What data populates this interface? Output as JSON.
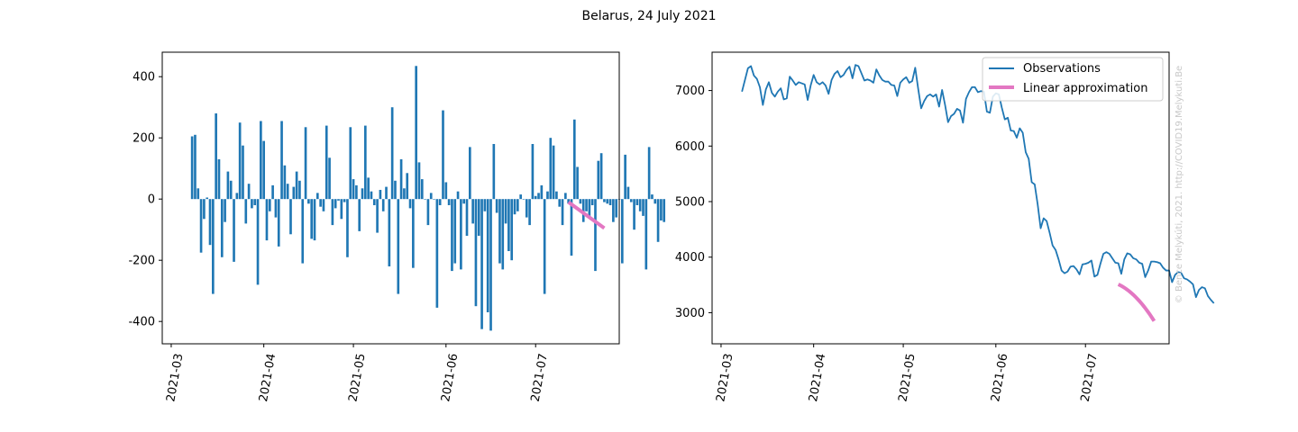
{
  "figure": {
    "title": "Belarus, 24 July 2021",
    "watermark": "© Bence Melykúti, 2021. http://COVID19.Melykuti.Be"
  },
  "colors": {
    "bar": "#1f77b4",
    "observations": "#1f77b4",
    "approximation": "#e377c2"
  },
  "chart_data": [
    {
      "type": "bar",
      "title": "",
      "xlabel": "",
      "ylabel": "",
      "x_start": "2021-03-08",
      "x_tick_labels": [
        "2021-03",
        "2021-04",
        "2021-05",
        "2021-06",
        "2021-07"
      ],
      "y_ticks": [
        -400,
        -200,
        0,
        200,
        400
      ],
      "ylim": [
        -473,
        480
      ],
      "xlim": [
        "2021-02-26",
        "2021-07-29"
      ],
      "values": [
        205,
        210,
        35,
        -175,
        -65,
        5,
        -150,
        -310,
        280,
        130,
        -190,
        -75,
        90,
        60,
        -205,
        20,
        250,
        175,
        -80,
        50,
        -30,
        -20,
        -280,
        255,
        190,
        -135,
        -40,
        45,
        -60,
        -155,
        255,
        110,
        50,
        -115,
        40,
        90,
        60,
        -210,
        235,
        -15,
        -130,
        -135,
        20,
        -25,
        -40,
        240,
        135,
        -85,
        -30,
        -5,
        -65,
        -10,
        -190,
        235,
        65,
        45,
        -105,
        35,
        240,
        70,
        25,
        -20,
        -110,
        30,
        -40,
        40,
        -220,
        300,
        60,
        -310,
        130,
        35,
        85,
        -30,
        -225,
        435,
        120,
        65,
        0,
        -85,
        20,
        0,
        -355,
        -20,
        290,
        55,
        -20,
        -235,
        -210,
        25,
        -230,
        -15,
        -120,
        170,
        -80,
        -350,
        -120,
        -425,
        -40,
        -370,
        -430,
        180,
        -45,
        -210,
        -230,
        -80,
        -170,
        -200,
        -50,
        -40,
        15,
        0,
        -60,
        -85,
        180,
        10,
        20,
        45,
        -310,
        25,
        200,
        175,
        25,
        -25,
        -85,
        20,
        -15,
        -185,
        260,
        105,
        -15,
        -75,
        -40,
        -60,
        -20,
        -235,
        125,
        150,
        -10,
        -15,
        -20,
        -75,
        -60,
        0,
        -210,
        145,
        40,
        -10,
        -100,
        -20,
        -40,
        -55,
        -230,
        170,
        15,
        -15,
        -140,
        -70,
        -75
      ],
      "approximation": {
        "name": "Linear approximation",
        "x": [
          "2021-07-12",
          "2021-07-24"
        ],
        "y": [
          -10,
          -95
        ]
      }
    },
    {
      "type": "line",
      "title": "",
      "xlabel": "",
      "ylabel": "",
      "x_start": "2021-03-08",
      "x_tick_labels": [
        "2021-03",
        "2021-04",
        "2021-05",
        "2021-06",
        "2021-07"
      ],
      "y_ticks": [
        3000,
        4000,
        5000,
        6000,
        7000
      ],
      "ylim": [
        2440,
        7690
      ],
      "xlim": [
        "2021-02-26",
        "2021-07-29"
      ],
      "legend_position": "top-right",
      "series": [
        {
          "name": "Observations",
          "values": [
            6980,
            7190,
            7400,
            7440,
            7270,
            7210,
            7060,
            6740,
            7020,
            7150,
            6960,
            6890,
            6980,
            7040,
            6840,
            6860,
            7250,
            7180,
            7100,
            7150,
            7130,
            7110,
            6830,
            7090,
            7280,
            7150,
            7110,
            7150,
            7090,
            6940,
            7190,
            7300,
            7350,
            7240,
            7280,
            7370,
            7430,
            7220,
            7460,
            7440,
            7310,
            7180,
            7200,
            7180,
            7140,
            7380,
            7270,
            7190,
            7160,
            7160,
            7100,
            7090,
            6900,
            7140,
            7200,
            7240,
            7140,
            7170,
            7410,
            7030,
            6680,
            6810,
            6900,
            6930,
            6890,
            6930,
            6710,
            7010,
            6740,
            6430,
            6540,
            6580,
            6670,
            6640,
            6420,
            6850,
            6970,
            7060,
            7060,
            6970,
            6990,
            6980,
            6620,
            6600,
            6890,
            6950,
            6930,
            6690,
            6480,
            6510,
            6280,
            6270,
            6150,
            6320,
            6240,
            5890,
            5770,
            5350,
            5310,
            4950,
            4520,
            4700,
            4650,
            4440,
            4210,
            4130,
            3960,
            3760,
            3710,
            3740,
            3830,
            3840,
            3780,
            3690,
            3870,
            3880,
            3900,
            3940,
            3650,
            3680,
            3880,
            4060,
            4090,
            4060,
            3980,
            3900,
            3890,
            3700,
            3960,
            4070,
            4050,
            3980,
            3960,
            3900,
            3880,
            3640,
            3760,
            3920,
            3920,
            3910,
            3890,
            3810,
            3760,
            3760,
            3550,
            3680,
            3730,
            3720,
            3620,
            3600,
            3560,
            3510,
            3280,
            3410,
            3460,
            3440,
            3300,
            3230,
            3170
          ],
          "scale_note": ""
        }
      ],
      "approximation": {
        "name": "Linear approximation",
        "x": [
          "2021-07-12",
          "2021-07-24"
        ],
        "y": [
          3510,
          2850
        ]
      }
    }
  ]
}
